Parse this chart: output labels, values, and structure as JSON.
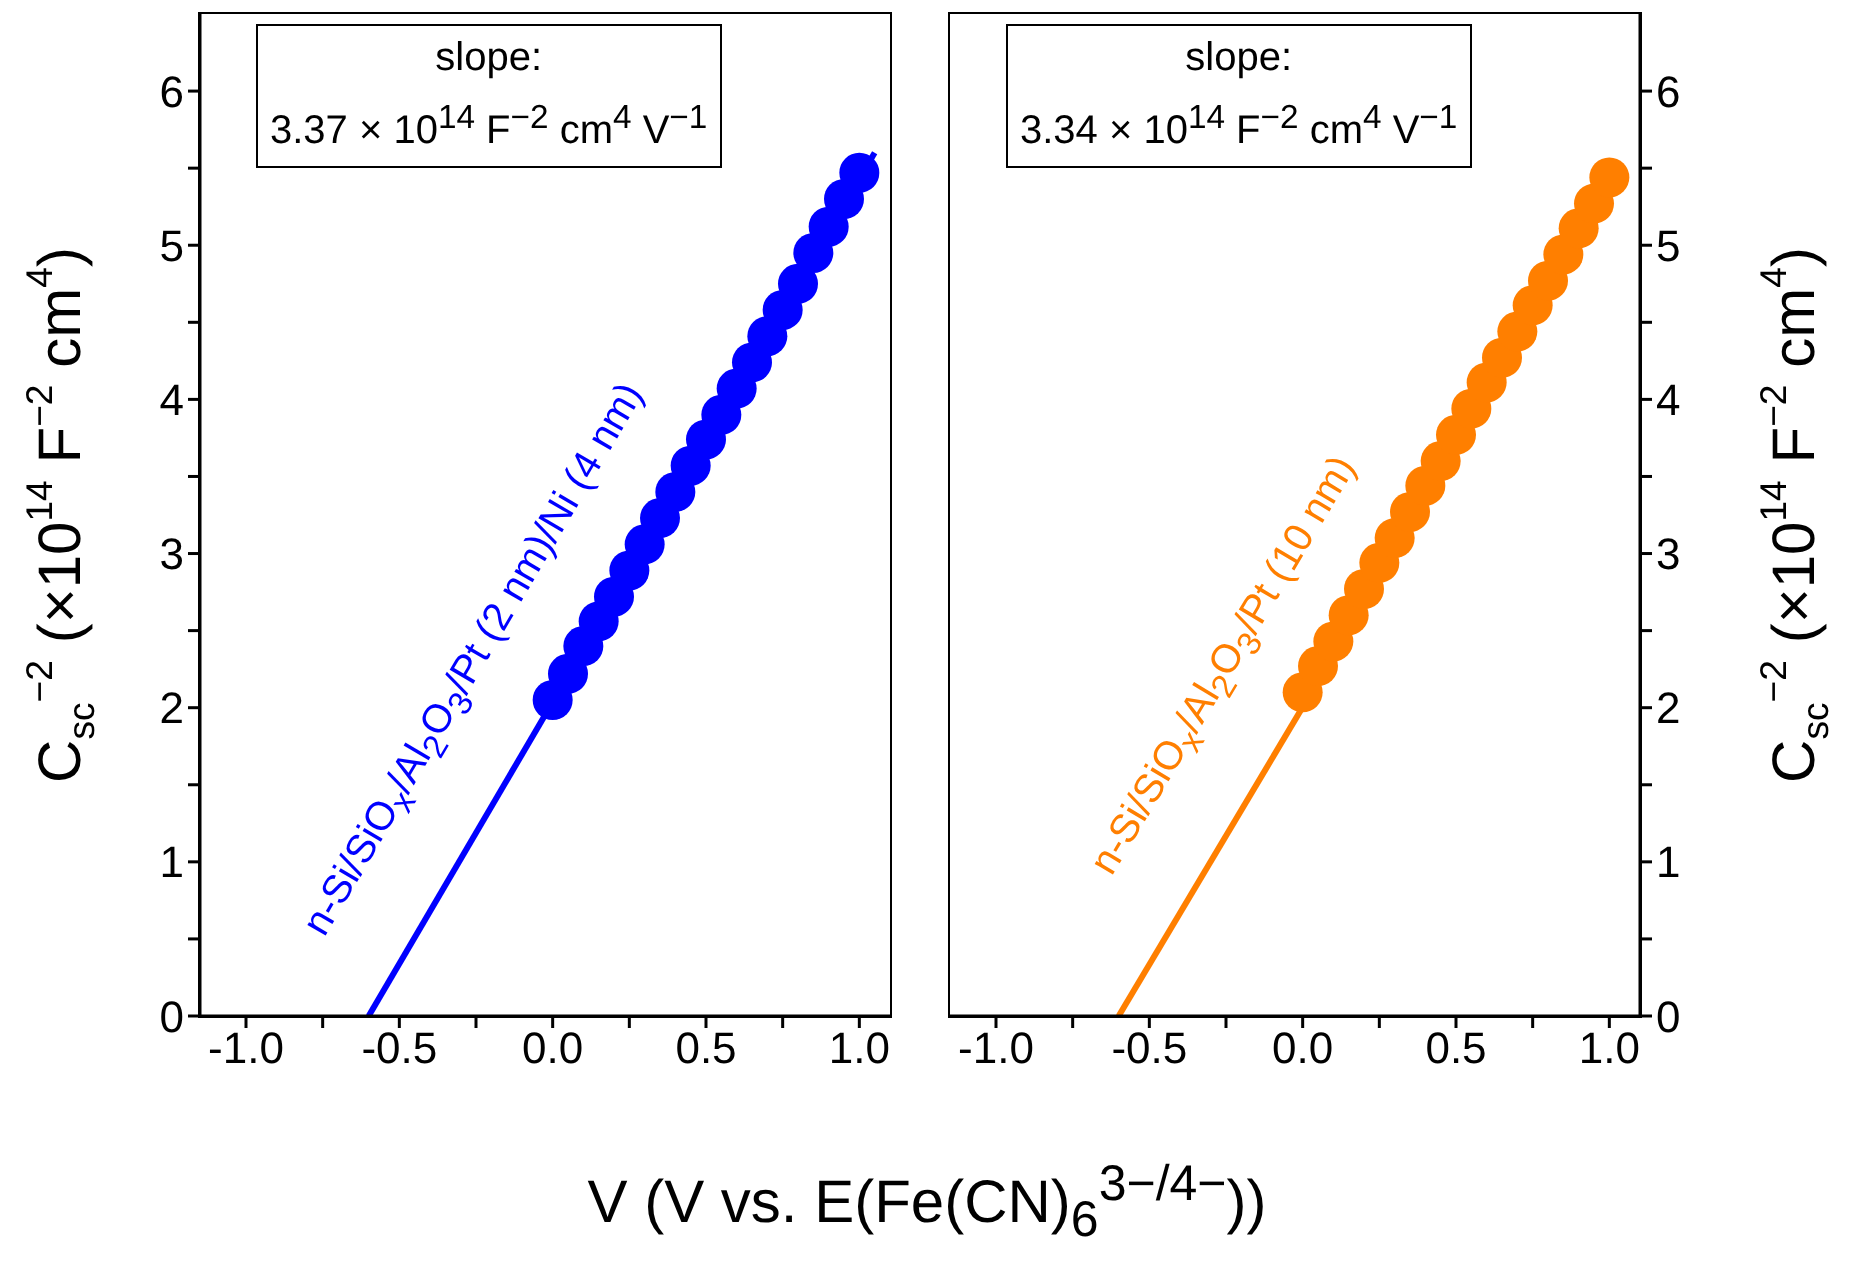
{
  "chart_data": [
    {
      "type": "scatter",
      "xlabel": "V (V vs. E(Fe(CN)$_{6}$$^{3−/4−}$))",
      "ylabel": "C$_{sc}$$^{−2}$ (×10$^{14}$ F$^{−2}$ cm$^{4}$)",
      "annotations": [
        "slope:",
        "3.37 × 10$^{14}$ F$^{−2}$ cm$^{4}$ V$^{−1}$"
      ],
      "xlim": [
        -1.15,
        1.1
      ],
      "xticks": [
        {
          "value": -1,
          "label": "-1.0"
        },
        {
          "value": -0.75,
          "label": null
        },
        {
          "value": -0.5,
          "label": "-0.5"
        },
        {
          "value": -0.25,
          "label": null
        },
        {
          "value": 0,
          "label": "0.0"
        },
        {
          "value": 0.25,
          "label": null
        },
        {
          "value": 0.5,
          "label": "0.5"
        },
        {
          "value": 0.75,
          "label": null
        },
        {
          "value": 1,
          "label": "1.0"
        }
      ],
      "ylim": [
        0,
        6.5
      ],
      "yticks": [
        0,
        {
          "value": 0.5,
          "label": null
        },
        1,
        {
          "value": 1.5,
          "label": null
        },
        2,
        {
          "value": 2.5,
          "label": null
        },
        3,
        {
          "value": 3.5,
          "label": null
        },
        4,
        {
          "value": 4.5,
          "label": null
        },
        5,
        {
          "value": 5.5,
          "label": null
        },
        6
      ],
      "marker": "circle",
      "legend": false,
      "grid": false,
      "series": [
        {
          "name": "n-Si/SiO$_{x}$/Al$_{2}$O$_{3}$/Pt (2 nm)/Ni (4 nm)",
          "color": "#0000ff",
          "x": [
            0,
            0.05,
            0.1,
            0.15,
            0.2,
            0.25,
            0.3,
            0.35,
            0.4,
            0.45,
            0.5,
            0.55,
            0.6,
            0.65,
            0.7,
            0.75,
            0.8,
            0.85,
            0.9,
            0.95,
            1.0
          ],
          "values": [
            2.05,
            2.22,
            2.4,
            2.56,
            2.72,
            2.89,
            3.06,
            3.23,
            3.4,
            3.57,
            3.74,
            3.9,
            4.07,
            4.24,
            4.41,
            4.58,
            4.75,
            4.95,
            5.12,
            5.3,
            5.47
          ]
        },
        {
          "type": "line",
          "marker": "none",
          "color": "#0000ff",
          "x": [
            -0.6,
            1.05
          ],
          "values": [
            0,
            5.6
          ]
        }
      ]
    },
    {
      "type": "scatter",
      "annotations": [
        "slope:",
        "3.34 × 10$^{14}$ F$^{−2}$ cm$^{4}$ V$^{−1}$"
      ],
      "y2label": "C$_{sc}$$^{−2}$ (×10$^{14}$ F$^{−2}$ cm$^{4}$)",
      "xlim": [
        -1.15,
        1.1
      ],
      "xticks": [
        {
          "value": -1,
          "label": "-1.0"
        },
        {
          "value": -0.75,
          "label": null
        },
        {
          "value": -0.5,
          "label": "-0.5"
        },
        {
          "value": -0.25,
          "label": null
        },
        {
          "value": 0,
          "label": "0.0"
        },
        {
          "value": 0.25,
          "label": null
        },
        {
          "value": 0.5,
          "label": "0.5"
        },
        {
          "value": 0.75,
          "label": null
        },
        {
          "value": 1,
          "label": "1.0"
        }
      ],
      "y2lim": [
        0,
        6.5
      ],
      "y2ticks": [
        0,
        {
          "value": 0.5,
          "label": null
        },
        1,
        {
          "value": 1.5,
          "label": null
        },
        2,
        {
          "value": 2.5,
          "label": null
        },
        3,
        {
          "value": 3.5,
          "label": null
        },
        4,
        {
          "value": 4.5,
          "label": null
        },
        5,
        {
          "value": 5.5,
          "label": null
        },
        6
      ],
      "marker": "circle",
      "legend": false,
      "grid": false,
      "series": [
        {
          "name": "n-Si/SiO$_{x}$/Al$_{2}$O$_{3}$/Pt (10 nm)",
          "color": "#ff7f00",
          "axis": "y2",
          "x": [
            0,
            0.05,
            0.1,
            0.15,
            0.2,
            0.25,
            0.3,
            0.35,
            0.4,
            0.45,
            0.5,
            0.55,
            0.6,
            0.65,
            0.7,
            0.75,
            0.8,
            0.85,
            0.9,
            0.95,
            1.0
          ],
          "values": [
            2.1,
            2.27,
            2.43,
            2.6,
            2.77,
            2.94,
            3.1,
            3.27,
            3.44,
            3.6,
            3.77,
            3.94,
            4.11,
            4.27,
            4.44,
            4.61,
            4.77,
            4.94,
            5.11,
            5.27,
            5.44
          ]
        },
        {
          "type": "line",
          "marker": "none",
          "color": "#ff7f00",
          "axis": "y2",
          "x": [
            -0.6,
            1.05
          ],
          "values": [
            0,
            5.51
          ]
        }
      ]
    }
  ]
}
